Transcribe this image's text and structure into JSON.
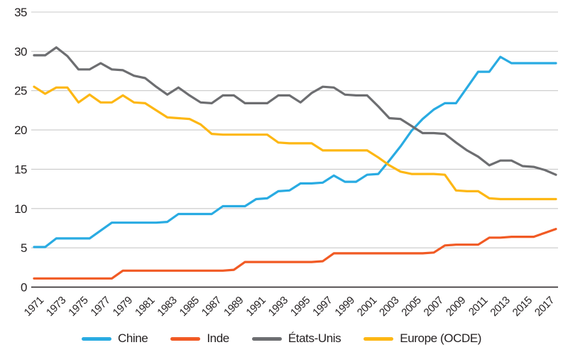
{
  "chart_data": {
    "type": "line",
    "title": "",
    "xlabel": "",
    "ylabel": "",
    "x": [
      1971,
      1972,
      1973,
      1974,
      1975,
      1976,
      1977,
      1978,
      1979,
      1980,
      1981,
      1982,
      1983,
      1984,
      1985,
      1986,
      1987,
      1988,
      1989,
      1990,
      1991,
      1992,
      1993,
      1994,
      1995,
      1996,
      1997,
      1998,
      1999,
      2000,
      2001,
      2002,
      2003,
      2004,
      2005,
      2006,
      2007,
      2008,
      2009,
      2010,
      2011,
      2012,
      2013,
      2014,
      2015,
      2016,
      2017,
      2018
    ],
    "x_tick_labels": [
      "1971",
      "1973",
      "1975",
      "1977",
      "1979",
      "1981",
      "1983",
      "1985",
      "1987",
      "1989",
      "1991",
      "1993",
      "1995",
      "1997",
      "1999",
      "2001",
      "2003",
      "2005",
      "2007",
      "2009",
      "2011",
      "2013",
      "2015",
      "2017"
    ],
    "ylim": [
      0,
      35
    ],
    "y_ticks": [
      0,
      5,
      10,
      15,
      20,
      25,
      30,
      35
    ],
    "grid": "horizontal",
    "legend_position": "bottom",
    "series": [
      {
        "name": "Chine",
        "color": "#29ABE2",
        "values": [
          5.1,
          5.1,
          6.2,
          6.2,
          6.2,
          6.2,
          7.2,
          8.2,
          8.2,
          8.2,
          8.2,
          8.2,
          8.3,
          9.3,
          9.3,
          9.3,
          9.3,
          10.3,
          10.3,
          10.3,
          11.2,
          11.3,
          12.2,
          12.3,
          13.2,
          13.2,
          13.3,
          14.2,
          13.4,
          13.4,
          14.3,
          14.4,
          16.1,
          17.9,
          19.9,
          21.4,
          22.6,
          23.4,
          23.4,
          25.4,
          27.4,
          27.4,
          29.3,
          28.5,
          28.5,
          28.5,
          28.5,
          28.5
        ]
      },
      {
        "name": "Inde",
        "color": "#F15A24",
        "values": [
          1.1,
          1.1,
          1.1,
          1.1,
          1.1,
          1.1,
          1.1,
          1.1,
          2.1,
          2.1,
          2.1,
          2.1,
          2.1,
          2.1,
          2.1,
          2.1,
          2.1,
          2.1,
          2.2,
          3.2,
          3.2,
          3.2,
          3.2,
          3.2,
          3.2,
          3.2,
          3.3,
          4.3,
          4.3,
          4.3,
          4.3,
          4.3,
          4.3,
          4.3,
          4.3,
          4.3,
          4.4,
          5.3,
          5.4,
          5.4,
          5.4,
          6.3,
          6.3,
          6.4,
          6.4,
          6.4,
          6.9,
          7.4
        ]
      },
      {
        "name": "États-Unis",
        "color": "#6D6E71",
        "values": [
          29.5,
          29.5,
          30.5,
          29.4,
          27.7,
          27.7,
          28.5,
          27.7,
          27.6,
          26.9,
          26.6,
          25.5,
          24.5,
          25.4,
          24.4,
          23.5,
          23.4,
          24.4,
          24.4,
          23.4,
          23.4,
          23.4,
          24.4,
          24.4,
          23.5,
          24.7,
          25.5,
          25.4,
          24.5,
          24.4,
          24.4,
          23.0,
          21.5,
          21.4,
          20.5,
          19.6,
          19.6,
          19.5,
          18.4,
          17.4,
          16.6,
          15.5,
          16.1,
          16.1,
          15.4,
          15.3,
          14.9,
          14.3
        ]
      },
      {
        "name": "Europe (OCDE)",
        "color": "#FDB714",
        "values": [
          25.5,
          24.6,
          25.4,
          25.4,
          23.5,
          24.5,
          23.5,
          23.5,
          24.4,
          23.5,
          23.4,
          22.5,
          21.6,
          21.5,
          21.4,
          20.7,
          19.5,
          19.4,
          19.4,
          19.4,
          19.4,
          19.4,
          18.4,
          18.3,
          18.3,
          18.3,
          17.4,
          17.4,
          17.4,
          17.4,
          17.4,
          16.5,
          15.5,
          14.7,
          14.4,
          14.4,
          14.4,
          14.3,
          12.3,
          12.2,
          12.2,
          11.3,
          11.2,
          11.2,
          11.2,
          11.2,
          11.2,
          11.2
        ]
      }
    ],
    "colors": {
      "grid_line": "#C9C9C9",
      "zero_axis": "#231F20",
      "text": "#231F20",
      "background": "#FFFFFF"
    }
  }
}
